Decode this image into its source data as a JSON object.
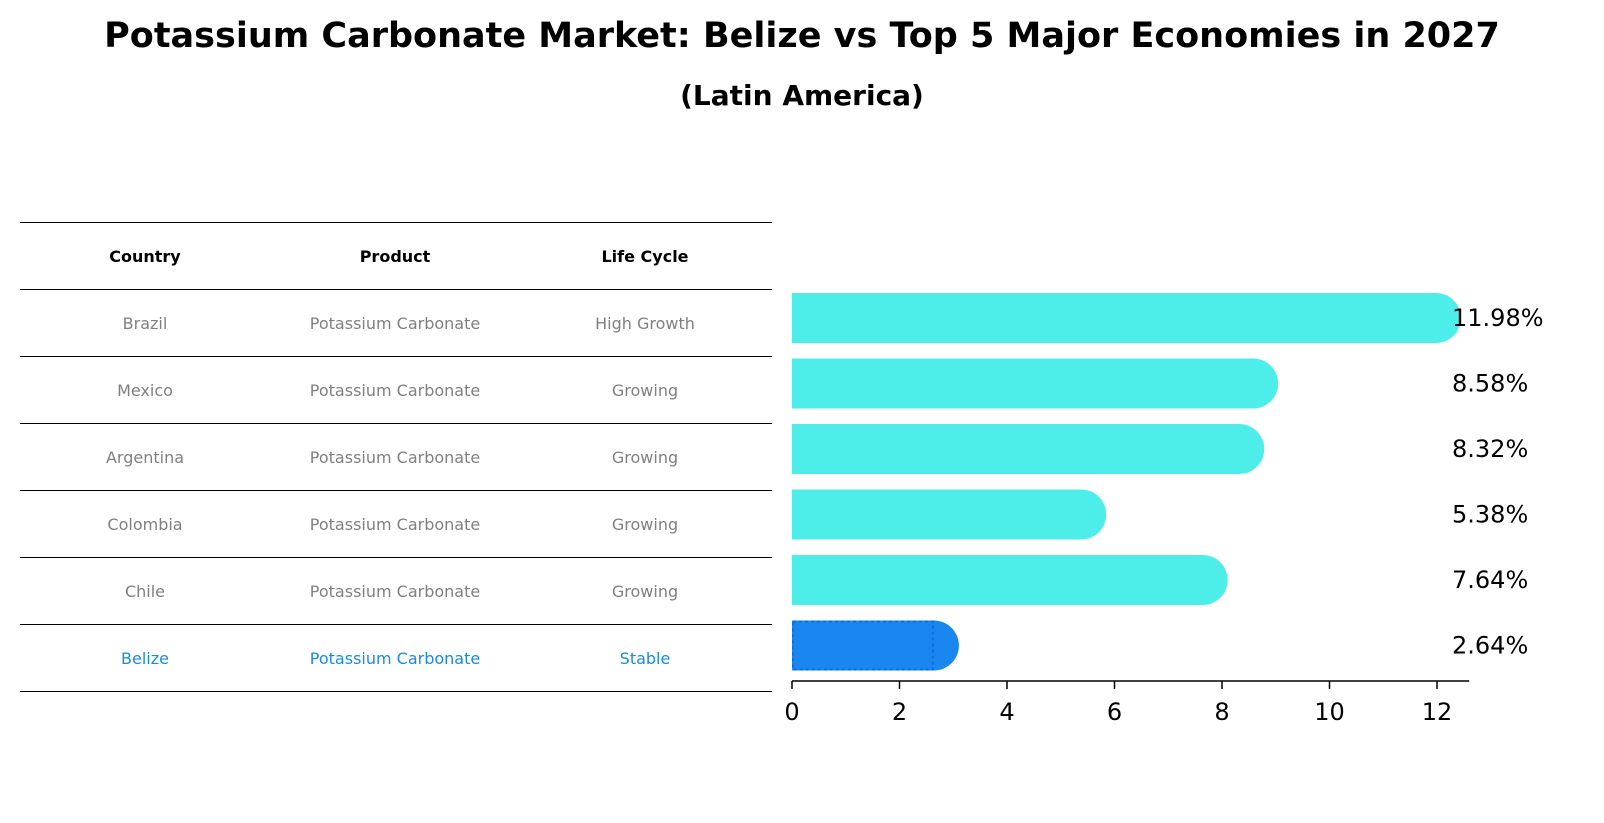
{
  "title": "Potassium Carbonate Market: Belize vs Top 5 Major Economies in 2027",
  "subtitle": "(Latin America)",
  "table": {
    "headers": [
      "Country",
      "Product",
      "Life Cycle"
    ],
    "rows": [
      [
        "Brazil",
        "Potassium Carbonate",
        "High Growth"
      ],
      [
        "Mexico",
        "Potassium Carbonate",
        "Growing"
      ],
      [
        "Argentina",
        "Potassium Carbonate",
        "Growing"
      ],
      [
        "Colombia",
        "Potassium Carbonate",
        "Growing"
      ],
      [
        "Chile",
        "Potassium Carbonate",
        "Growing"
      ],
      [
        "Belize",
        "Potassium Carbonate",
        "Stable"
      ]
    ]
  },
  "chart_data": {
    "type": "bar",
    "orientation": "horizontal",
    "categories": [
      "Brazil",
      "Mexico",
      "Argentina",
      "Colombia",
      "Chile",
      "Belize"
    ],
    "values": [
      11.98,
      8.58,
      8.32,
      5.38,
      7.64,
      2.64
    ],
    "value_labels": [
      "11.98%",
      "8.58%",
      "8.32%",
      "5.38%",
      "7.64%",
      "2.64%"
    ],
    "xlim": [
      0,
      12.6
    ],
    "xticks": [
      0,
      2,
      4,
      6,
      8,
      10,
      12
    ],
    "highlight": "Belize",
    "colors": {
      "default": "#4ded eb",
      "highlight": "#1a87f0"
    }
  }
}
